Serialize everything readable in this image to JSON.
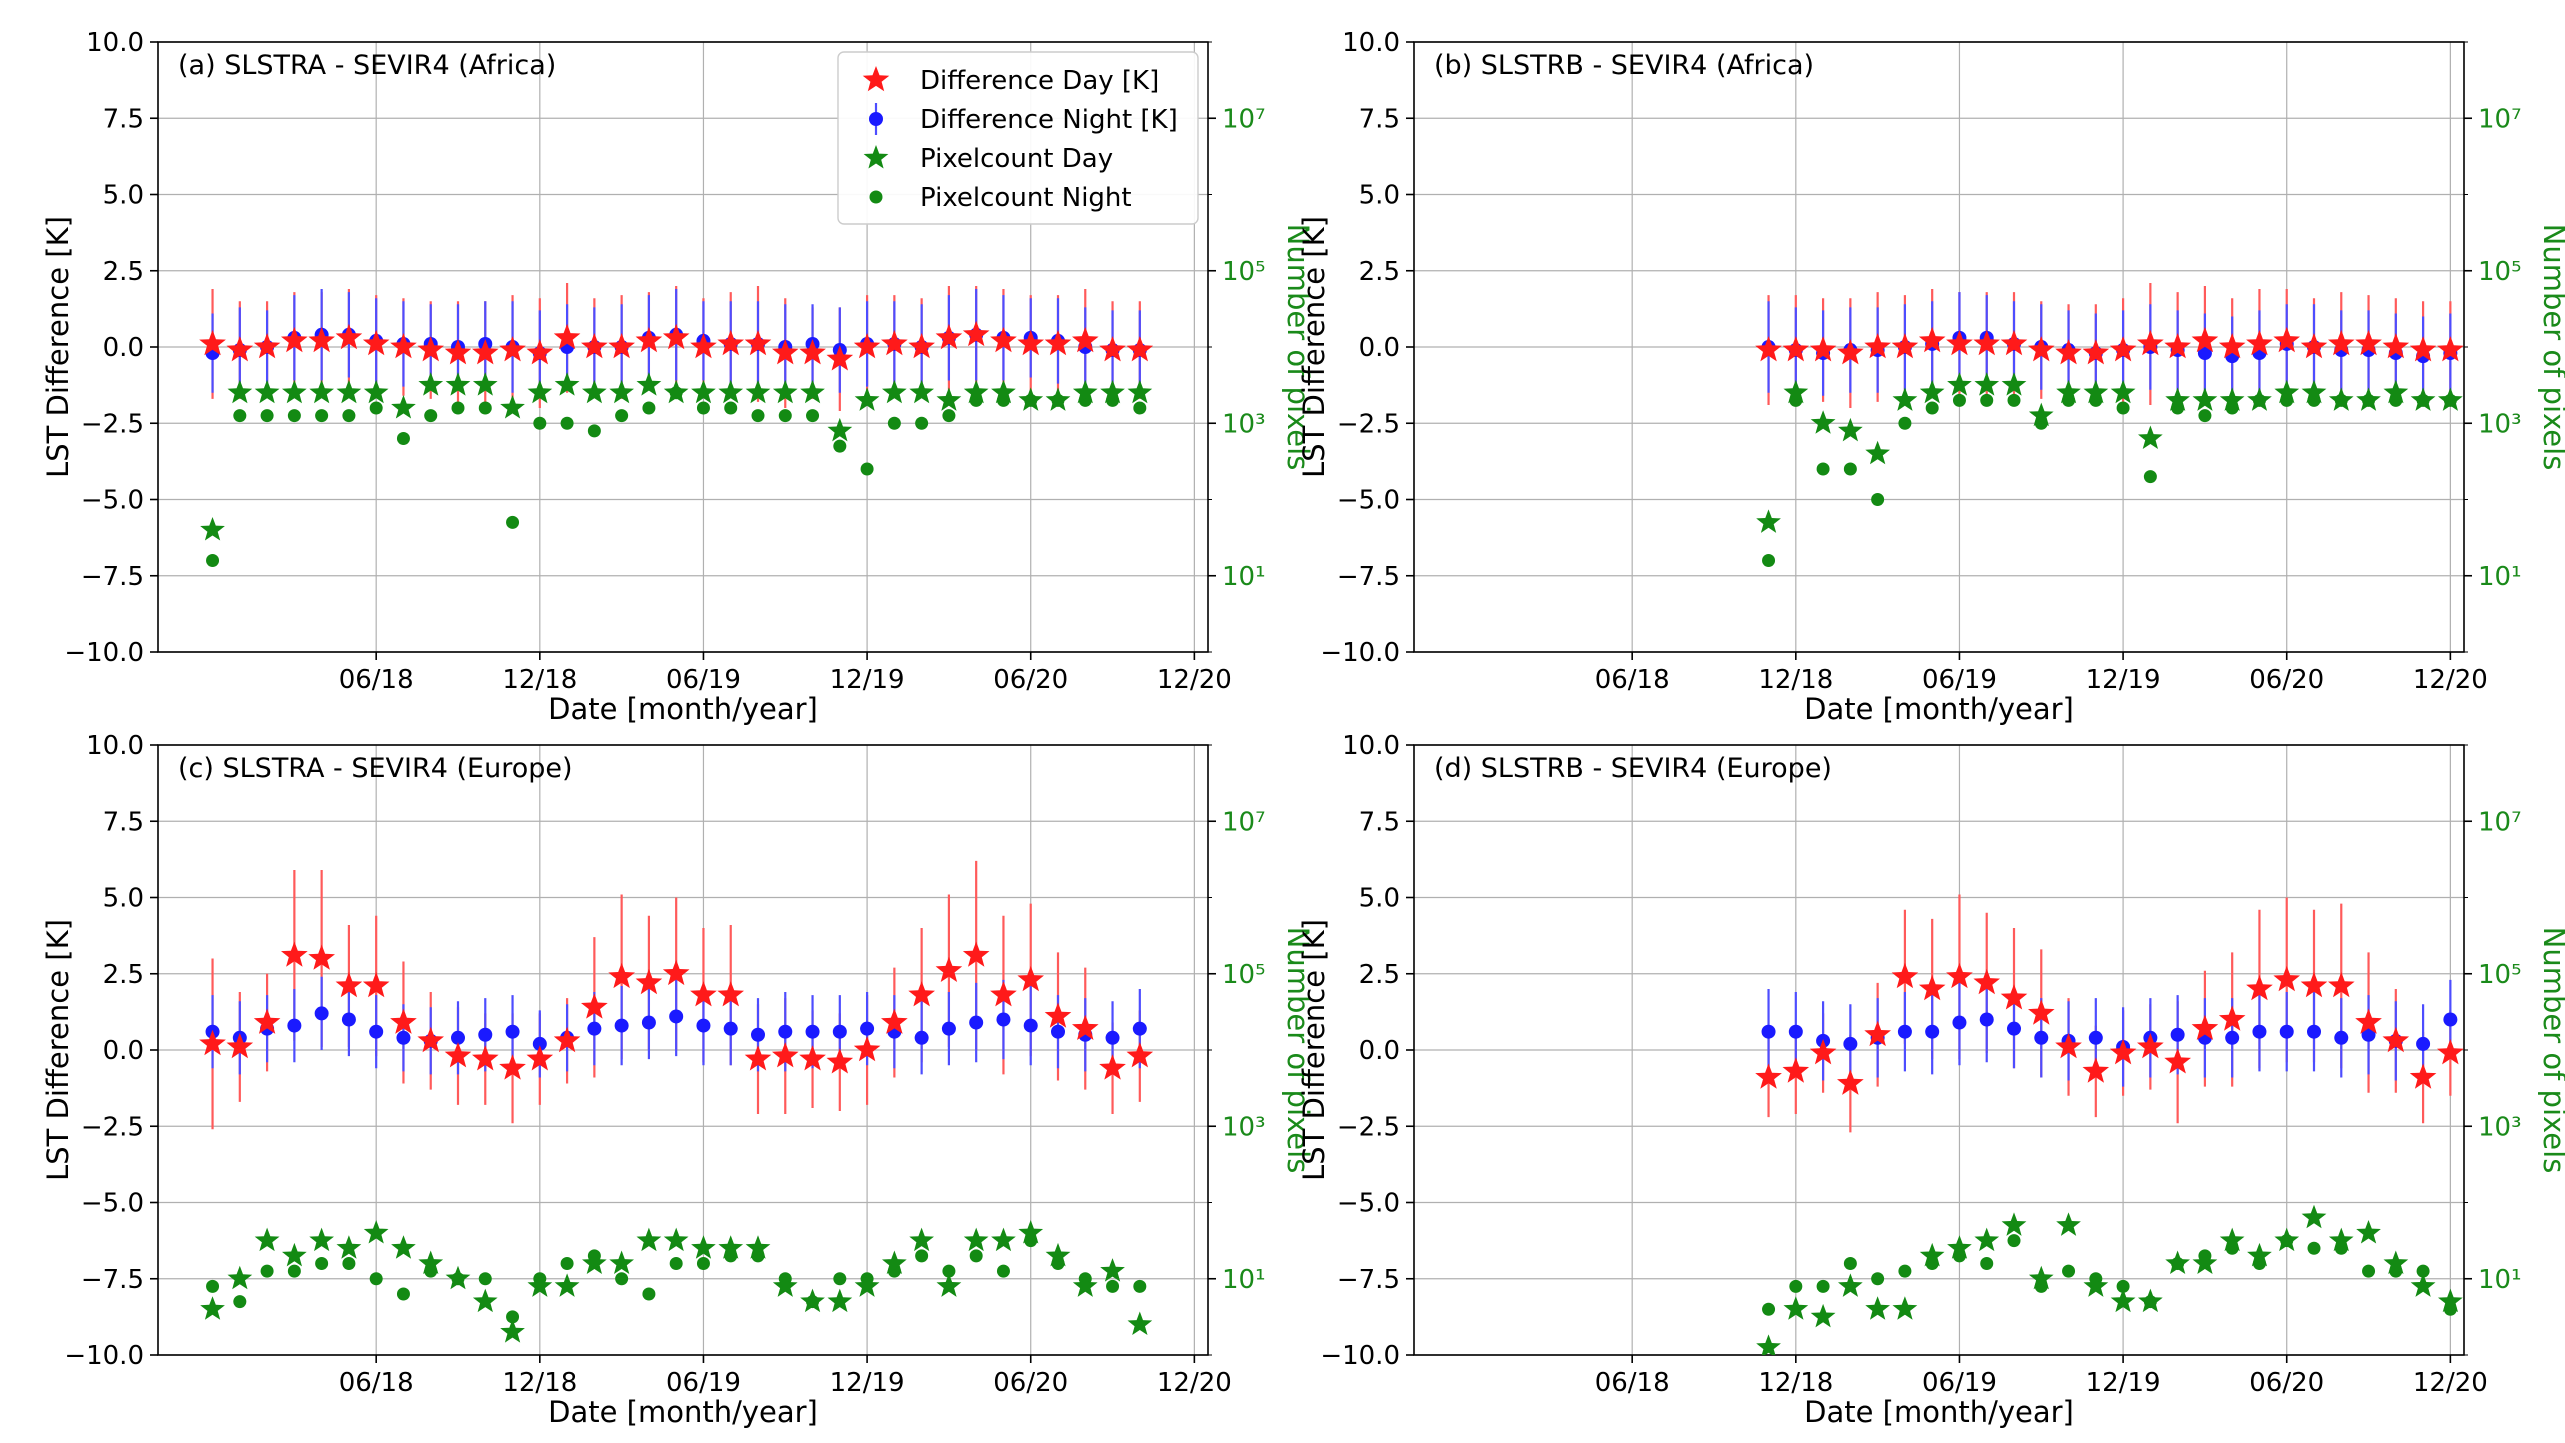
{
  "chart_data": [
    {
      "type": "scatter",
      "title": "(a) SLSTRA - SEVIR4 (Africa)",
      "xlabel": "Date [month/year]",
      "ylabel": "LST Difference [K]",
      "y2label": "Number of pixels",
      "ylim": [
        -10,
        10
      ],
      "y2lim_log10": [
        0,
        8
      ],
      "x_months_since_jan2018": [
        -3,
        35.5
      ],
      "yticks": [
        "10.0",
        "7.5",
        "5.0",
        "2.5",
        "0.0",
        "−2.5",
        "−5.0",
        "−7.5",
        "−10.0"
      ],
      "xticks": [
        "06/18",
        "12/18",
        "06/19",
        "12/19",
        "06/20",
        "12/20"
      ],
      "y2ticks": [
        "10¹",
        "10³",
        "10⁵",
        "10⁷"
      ],
      "legend": {
        "position": "top-right",
        "entries": [
          "Difference Day [K]",
          "Difference Night [K]",
          "Pixelcount Day",
          "Pixelcount Night"
        ]
      },
      "start_month": -1,
      "series": [
        {
          "name": "Difference Day [K]",
          "values": [
            0.1,
            -0.1,
            0.0,
            0.2,
            0.2,
            0.3,
            0.1,
            0.0,
            -0.1,
            -0.2,
            -0.2,
            -0.1,
            -0.2,
            0.3,
            0.0,
            0.0,
            0.2,
            0.3,
            0.0,
            0.1,
            0.1,
            -0.2,
            -0.2,
            -0.4,
            0.0,
            0.1,
            0.0,
            0.3,
            0.4,
            0.2,
            0.1,
            0.1,
            0.2,
            -0.1,
            -0.1
          ],
          "err": [
            1.8,
            1.6,
            1.5,
            1.6,
            1.6,
            1.6,
            1.6,
            1.6,
            1.6,
            1.7,
            1.7,
            1.8,
            1.8,
            1.8,
            1.6,
            1.7,
            1.6,
            1.7,
            1.6,
            1.7,
            1.9,
            1.8,
            1.5,
            1.7,
            1.7,
            1.6,
            1.6,
            1.7,
            1.6,
            1.7,
            1.6,
            1.6,
            1.7,
            1.6,
            1.6
          ]
        },
        {
          "name": "Difference Night [K]",
          "values": [
            -0.2,
            -0.1,
            0.0,
            0.3,
            0.4,
            0.4,
            0.2,
            0.1,
            0.1,
            0.0,
            0.1,
            0.0,
            -0.2,
            0.0,
            0.0,
            0.0,
            0.3,
            0.4,
            0.2,
            0.1,
            0.1,
            0.0,
            0.1,
            -0.1,
            0.1,
            0.1,
            0.0,
            0.3,
            0.4,
            0.3,
            0.3,
            0.2,
            0.0,
            -0.1,
            -0.1
          ],
          "err": [
            1.3,
            1.4,
            1.2,
            1.4,
            1.5,
            1.4,
            1.4,
            1.4,
            1.3,
            1.4,
            1.4,
            1.5,
            1.4,
            1.4,
            1.3,
            1.4,
            1.4,
            1.5,
            1.3,
            1.4,
            1.4,
            1.4,
            1.3,
            1.4,
            1.4,
            1.4,
            1.4,
            1.4,
            1.5,
            1.4,
            1.3,
            1.4,
            1.3,
            1.3,
            1.3
          ]
        },
        {
          "name": "Pixelcount Day",
          "values": [
            1.6,
            3.4,
            3.4,
            3.4,
            3.4,
            3.4,
            3.4,
            3.2,
            3.5,
            3.5,
            3.5,
            3.2,
            3.4,
            3.5,
            3.4,
            3.4,
            3.5,
            3.4,
            3.4,
            3.4,
            3.4,
            3.4,
            3.4,
            2.9,
            3.3,
            3.4,
            3.4,
            3.3,
            3.4,
            3.4,
            3.3,
            3.3,
            3.4,
            3.4,
            3.4
          ]
        },
        {
          "name": "Pixelcount Night",
          "values": [
            1.2,
            3.1,
            3.1,
            3.1,
            3.1,
            3.1,
            3.2,
            2.8,
            3.1,
            3.2,
            3.2,
            1.7,
            3.0,
            3.0,
            2.9,
            3.1,
            3.2,
            3.4,
            3.2,
            3.2,
            3.1,
            3.1,
            3.1,
            2.7,
            2.4,
            3.0,
            3.0,
            3.1,
            3.3,
            3.3,
            3.3,
            3.3,
            3.3,
            3.3,
            3.2
          ]
        }
      ]
    },
    {
      "type": "scatter",
      "title": "(b) SLSTRB - SEVIR4 (Africa)",
      "xlabel": "Date [month/year]",
      "ylabel": "LST Difference [K]",
      "y2label": "Number of pixels",
      "ylim": [
        -10,
        10
      ],
      "y2lim_log10": [
        0,
        8
      ],
      "x_months_since_jan2018": [
        -3,
        35.5
      ],
      "yticks": [
        "10.0",
        "7.5",
        "5.0",
        "2.5",
        "0.0",
        "−2.5",
        "−5.0",
        "−7.5",
        "−10.0"
      ],
      "xticks": [
        "06/18",
        "12/18",
        "06/19",
        "12/19",
        "06/20",
        "12/20"
      ],
      "y2ticks": [
        "10¹",
        "10³",
        "10⁵",
        "10⁷"
      ],
      "start_month": 10,
      "series": [
        {
          "name": "Difference Day [K]",
          "values": [
            -0.1,
            -0.1,
            -0.1,
            -0.2,
            0.0,
            0.0,
            0.2,
            0.1,
            0.1,
            0.1,
            -0.1,
            -0.2,
            -0.2,
            -0.1,
            0.1,
            0.0,
            0.2,
            0.0,
            0.1,
            0.2,
            0.0,
            0.1,
            0.1,
            0.0,
            -0.1,
            -0.1
          ],
          "err": [
            1.8,
            1.8,
            1.7,
            1.8,
            1.8,
            1.7,
            1.7,
            1.7,
            1.7,
            1.7,
            1.6,
            1.6,
            1.6,
            1.7,
            2.0,
            1.8,
            1.8,
            1.6,
            1.8,
            1.7,
            1.6,
            1.7,
            1.6,
            1.6,
            1.6,
            1.6
          ]
        },
        {
          "name": "Difference Night [K]",
          "values": [
            0.0,
            -0.1,
            -0.2,
            -0.1,
            -0.1,
            0.0,
            0.1,
            0.3,
            0.3,
            0.1,
            0.0,
            -0.1,
            -0.2,
            -0.1,
            0.0,
            -0.1,
            -0.2,
            -0.3,
            -0.2,
            0.1,
            0.0,
            -0.1,
            -0.1,
            -0.2,
            -0.3,
            -0.2
          ],
          "err": [
            1.5,
            1.4,
            1.4,
            1.4,
            1.4,
            1.4,
            1.4,
            1.5,
            1.4,
            1.4,
            1.4,
            1.3,
            1.3,
            1.3,
            1.4,
            1.3,
            1.3,
            1.3,
            1.4,
            1.3,
            1.4,
            1.3,
            1.3,
            1.3,
            1.3,
            1.3
          ]
        },
        {
          "name": "Pixelcount Day",
          "values": [
            1.7,
            3.4,
            3.0,
            2.9,
            2.6,
            3.3,
            3.4,
            3.5,
            3.5,
            3.5,
            3.1,
            3.4,
            3.4,
            3.4,
            2.8,
            3.3,
            3.3,
            3.3,
            3.3,
            3.4,
            3.4,
            3.3,
            3.3,
            3.4,
            3.3,
            3.3
          ]
        },
        {
          "name": "Pixelcount Night",
          "values": [
            1.2,
            3.3,
            2.4,
            2.4,
            2.0,
            3.0,
            3.2,
            3.3,
            3.3,
            3.3,
            3.0,
            3.3,
            3.3,
            3.2,
            2.3,
            3.2,
            3.1,
            3.2,
            3.3,
            3.3,
            3.3,
            3.3,
            3.3,
            3.3,
            3.3,
            3.3
          ]
        }
      ]
    },
    {
      "type": "scatter",
      "title": "(c) SLSTRA - SEVIR4 (Europe)",
      "xlabel": "Date [month/year]",
      "ylabel": "LST Difference [K]",
      "y2label": "Number of pixels",
      "ylim": [
        -10,
        10
      ],
      "y2lim_log10": [
        0,
        8
      ],
      "x_months_since_jan2018": [
        -3,
        35.5
      ],
      "yticks": [
        "10.0",
        "7.5",
        "5.0",
        "2.5",
        "0.0",
        "−2.5",
        "−5.0",
        "−7.5",
        "−10.0"
      ],
      "xticks": [
        "06/18",
        "12/18",
        "06/19",
        "12/19",
        "06/20",
        "12/20"
      ],
      "y2ticks": [
        "10¹",
        "10³",
        "10⁵",
        "10⁷"
      ],
      "start_month": -1,
      "series": [
        {
          "name": "Difference Day [K]",
          "values": [
            0.2,
            0.1,
            0.9,
            3.1,
            3.0,
            2.1,
            2.1,
            0.9,
            0.3,
            -0.2,
            -0.3,
            -0.6,
            -0.3,
            0.3,
            1.4,
            2.4,
            2.2,
            2.5,
            1.8,
            1.8,
            -0.3,
            -0.2,
            -0.3,
            -0.4,
            0.0,
            0.9,
            1.8,
            2.6,
            3.1,
            1.8,
            2.3,
            1.1,
            0.7,
            -0.6,
            -0.2
          ],
          "err": [
            2.8,
            1.8,
            1.6,
            2.8,
            2.9,
            2.0,
            2.3,
            2.0,
            1.6,
            1.6,
            1.5,
            1.8,
            1.5,
            1.4,
            2.3,
            2.7,
            2.2,
            2.5,
            2.2,
            2.3,
            1.8,
            1.9,
            1.6,
            1.6,
            1.8,
            1.8,
            2.2,
            2.5,
            3.1,
            2.6,
            2.5,
            2.1,
            2.0,
            1.5,
            1.5
          ]
        },
        {
          "name": "Difference Night [K]",
          "values": [
            0.6,
            0.4,
            0.7,
            0.8,
            1.2,
            1.0,
            0.6,
            0.4,
            0.3,
            0.4,
            0.5,
            0.6,
            0.2,
            0.4,
            0.7,
            0.8,
            0.9,
            1.1,
            0.8,
            0.7,
            0.5,
            0.6,
            0.6,
            0.6,
            0.7,
            0.6,
            0.4,
            0.7,
            0.9,
            1.0,
            0.8,
            0.6,
            0.5,
            0.4,
            0.7
          ],
          "err": [
            1.2,
            1.2,
            1.1,
            1.2,
            1.2,
            1.2,
            1.2,
            1.1,
            1.1,
            1.2,
            1.2,
            1.2,
            1.1,
            1.1,
            1.2,
            1.3,
            1.2,
            1.3,
            1.3,
            1.2,
            1.2,
            1.3,
            1.2,
            1.2,
            1.2,
            1.2,
            1.2,
            1.2,
            1.3,
            1.3,
            1.3,
            1.2,
            1.2,
            1.2,
            1.3
          ]
        },
        {
          "name": "Pixelcount Day",
          "values": [
            0.6,
            1.0,
            1.5,
            1.3,
            1.5,
            1.4,
            1.6,
            1.4,
            1.2,
            1.0,
            0.7,
            0.3,
            0.9,
            0.9,
            1.2,
            1.2,
            1.5,
            1.5,
            1.4,
            1.4,
            1.4,
            0.9,
            0.7,
            0.7,
            0.9,
            1.2,
            1.5,
            0.9,
            1.5,
            1.5,
            1.6,
            1.3,
            0.9,
            1.1,
            0.4
          ]
        },
        {
          "name": "Pixelcount Night",
          "values": [
            0.9,
            0.7,
            1.1,
            1.1,
            1.2,
            1.2,
            1.0,
            0.8,
            1.1,
            1.0,
            1.0,
            0.5,
            1.0,
            1.2,
            1.3,
            1.0,
            0.8,
            1.2,
            1.2,
            1.3,
            1.3,
            1.0,
            0.7,
            1.0,
            1.0,
            1.1,
            1.3,
            1.1,
            1.3,
            1.1,
            1.5,
            1.2,
            1.0,
            0.9,
            0.9
          ]
        }
      ]
    },
    {
      "type": "scatter",
      "title": "(d) SLSTRB - SEVIR4 (Europe)",
      "xlabel": "Date [month/year]",
      "ylabel": "LST Difference [K]",
      "y2label": "Number of pixels",
      "ylim": [
        -10,
        10
      ],
      "y2lim_log10": [
        0,
        8
      ],
      "x_months_since_jan2018": [
        -3,
        35.5
      ],
      "yticks": [
        "10.0",
        "7.5",
        "5.0",
        "2.5",
        "0.0",
        "−2.5",
        "−5.0",
        "−7.5",
        "−10.0"
      ],
      "xticks": [
        "06/18",
        "12/18",
        "06/19",
        "12/19",
        "06/20",
        "12/20"
      ],
      "y2ticks": [
        "10¹",
        "10³",
        "10⁵",
        "10⁷"
      ],
      "start_month": 10,
      "series": [
        {
          "name": "Difference Day [K]",
          "values": [
            -0.9,
            -0.7,
            -0.1,
            -1.1,
            0.5,
            2.4,
            2.0,
            2.4,
            2.2,
            1.7,
            1.2,
            0.1,
            -0.7,
            -0.1,
            0.1,
            -0.4,
            0.7,
            1.0,
            2.0,
            2.3,
            2.1,
            2.1,
            0.9,
            0.3,
            -0.9,
            -0.1
          ],
          "err": [
            1.3,
            1.4,
            1.3,
            1.6,
            1.7,
            2.2,
            2.3,
            2.7,
            2.3,
            2.3,
            2.1,
            1.6,
            1.5,
            1.4,
            1.4,
            2.0,
            1.9,
            2.2,
            2.6,
            2.7,
            2.5,
            2.7,
            2.3,
            1.7,
            1.5,
            1.4
          ]
        },
        {
          "name": "Difference Night [K]",
          "values": [
            0.6,
            0.6,
            0.3,
            0.2,
            0.4,
            0.6,
            0.6,
            0.9,
            1.0,
            0.7,
            0.4,
            0.3,
            0.4,
            0.1,
            0.4,
            0.5,
            0.4,
            0.4,
            0.6,
            0.6,
            0.6,
            0.4,
            0.5,
            0.3,
            0.2,
            1.0
          ],
          "err": [
            1.4,
            1.3,
            1.3,
            1.3,
            1.3,
            1.3,
            1.4,
            1.4,
            1.4,
            1.3,
            1.3,
            1.3,
            1.3,
            1.3,
            1.3,
            1.3,
            1.3,
            1.3,
            1.3,
            1.3,
            1.3,
            1.3,
            1.3,
            1.3,
            1.3,
            1.3
          ]
        },
        {
          "name": "Pixelcount Day",
          "values": [
            0.1,
            0.6,
            0.5,
            0.9,
            0.6,
            0.6,
            1.3,
            1.4,
            1.5,
            1.7,
            1.0,
            1.7,
            0.9,
            0.7,
            0.7,
            1.2,
            1.2,
            1.5,
            1.3,
            1.5,
            1.8,
            1.5,
            1.6,
            1.2,
            0.9,
            0.7
          ]
        },
        {
          "name": "Pixelcount Night",
          "values": [
            0.6,
            0.9,
            0.9,
            1.2,
            1.0,
            1.1,
            1.2,
            1.3,
            1.2,
            1.5,
            0.9,
            1.1,
            1.0,
            0.9,
            0.7,
            1.2,
            1.3,
            1.4,
            1.2,
            1.5,
            1.4,
            1.4,
            1.1,
            1.1,
            1.1,
            0.6
          ]
        }
      ]
    }
  ]
}
